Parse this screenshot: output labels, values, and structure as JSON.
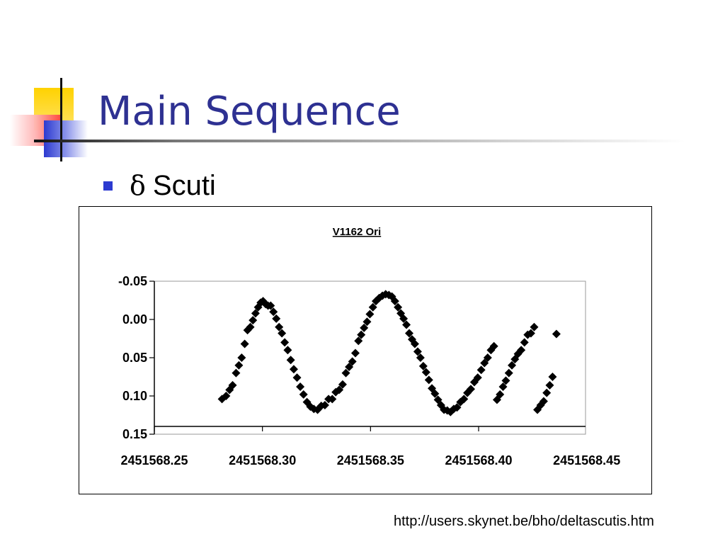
{
  "slide": {
    "title": "Main Sequence",
    "bullet": {
      "symbol": "δ",
      "text": "Scuti"
    },
    "source_url": "http://users.skynet.be/bho/deltascutis.htm"
  },
  "colors": {
    "title": "#2e3192",
    "bullet": "#2c3ad0",
    "data_points": "#000000",
    "plot_border": "#999999"
  },
  "chart_data": {
    "type": "scatter",
    "title": "V1162 Ori",
    "xlabel": "",
    "ylabel": "",
    "xlim": [
      2451568.25,
      2451568.45
    ],
    "ylim": [
      -0.05,
      0.15
    ],
    "y_inverted": true,
    "grid": false,
    "legend": "none",
    "x_tick_labels": [
      "2451568.25",
      "2451568.30",
      "2451568.35",
      "2451568.40",
      "2451568.45"
    ],
    "y_tick_labels": [
      "-0.05",
      "0.00",
      "0.05",
      "0.10",
      "0.15"
    ],
    "marker": "diamond",
    "series": [
      {
        "x": [
          2451568.2813,
          2451568.2832,
          2451568.2848,
          2451568.2862,
          2451568.2878,
          2451568.2891,
          2451568.2904,
          2451568.2918,
          2451568.2931,
          2451568.2944,
          2451568.2956,
          2451568.2968,
          2451568.298,
          2451568.2992,
          2451568.3003,
          2451568.3015,
          2451568.3026,
          2451568.3038,
          2451568.3051,
          2451568.3064,
          2451568.3077,
          2451568.309,
          2451568.3103,
          2451568.3117,
          2451568.3131,
          2451568.3145,
          2451568.316,
          2451568.3175,
          2451568.319,
          2451568.3206,
          2451568.3222,
          2451568.3238,
          2451568.3255,
          2451568.3272,
          2451568.3289,
          2451568.3306,
          2451568.3323,
          2451568.3339,
          2451568.3355,
          2451568.3371,
          2451568.3386,
          2451568.3401,
          2451568.3416,
          2451568.343,
          2451568.3444,
          2451568.3457,
          2451568.347,
          2451568.3484,
          2451568.3497,
          2451568.3511,
          2451568.3525,
          2451568.354,
          2451568.3555,
          2451568.357,
          2451568.3585,
          2451568.3599,
          2451568.3613,
          2451568.3627,
          2451568.364,
          2451568.3653,
          2451568.3666,
          2451568.3679,
          2451568.3692,
          2451568.3705,
          2451568.3718,
          2451568.3731,
          2451568.3744,
          2451568.3757,
          2451568.377,
          2451568.3784,
          2451568.3798,
          2451568.3812,
          2451568.3826,
          2451568.384,
          2451568.3855,
          2451568.387,
          2451568.3885,
          2451568.39,
          2451568.3916,
          2451568.3932,
          2451568.3948,
          2451568.3964,
          2451568.398,
          2451568.3996,
          2451568.4012,
          2451568.4027,
          2451568.4042,
          2451568.4057,
          2451568.4071,
          2451568.4085,
          2451568.4099,
          2451568.4113,
          2451568.4126,
          2451568.414,
          2451568.4154,
          2451568.4168,
          2451568.4182,
          2451568.4197,
          2451568.4212,
          2451568.4227,
          2451568.4242,
          2451568.4257,
          2451568.4272,
          2451568.4287,
          2451568.4301,
          2451568.4315,
          2451568.4329,
          2451568.4342,
          2451568.436
        ],
        "y": [
          0.104,
          0.1,
          0.092,
          0.086,
          0.07,
          0.06,
          0.05,
          0.032,
          0.014,
          0.01,
          0.001,
          -0.008,
          -0.016,
          -0.022,
          -0.024,
          -0.02,
          -0.018,
          -0.018,
          -0.01,
          -0.001,
          0.01,
          0.018,
          0.03,
          0.04,
          0.053,
          0.065,
          0.076,
          0.088,
          0.098,
          0.108,
          0.114,
          0.117,
          0.118,
          0.113,
          0.112,
          0.104,
          0.104,
          0.095,
          0.092,
          0.085,
          0.07,
          0.062,
          0.055,
          0.044,
          0.028,
          0.02,
          0.011,
          0.003,
          -0.007,
          -0.016,
          -0.024,
          -0.028,
          -0.031,
          -0.033,
          -0.032,
          -0.03,
          -0.024,
          -0.016,
          -0.008,
          -0.001,
          0.007,
          0.018,
          0.026,
          0.032,
          0.042,
          0.05,
          0.061,
          0.069,
          0.079,
          0.09,
          0.097,
          0.105,
          0.112,
          0.118,
          0.119,
          0.121,
          0.117,
          0.115,
          0.108,
          0.104,
          0.096,
          0.091,
          0.082,
          0.076,
          0.066,
          0.057,
          0.05,
          0.04,
          0.035,
          0.105,
          0.098,
          0.088,
          0.08,
          0.07,
          0.06,
          0.052,
          0.045,
          0.04,
          0.03,
          0.02,
          0.018,
          0.01,
          0.118,
          0.112,
          0.107,
          0.096,
          0.086,
          0.075,
          0.019
        ]
      }
    ]
  }
}
